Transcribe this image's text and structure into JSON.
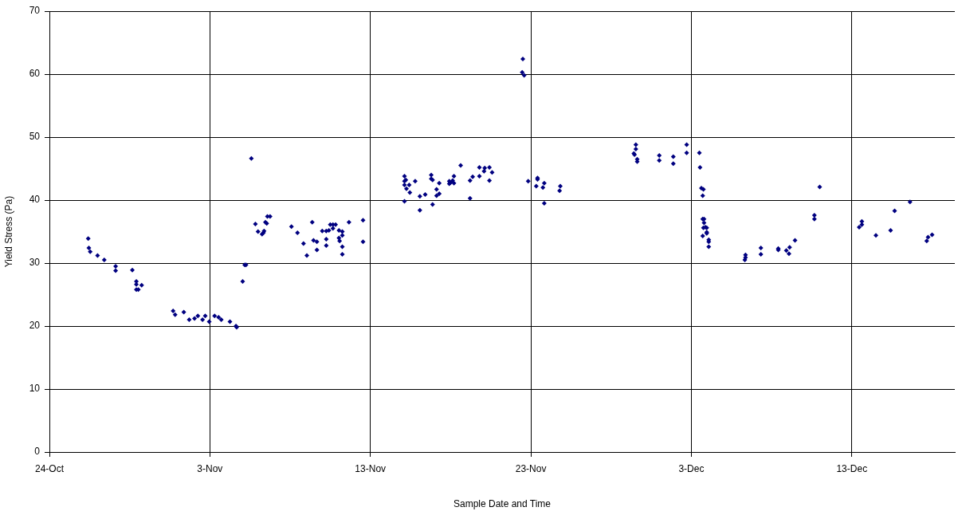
{
  "chart_data": {
    "type": "scatter",
    "xlabel": "Sample Date and Time",
    "ylabel": "Yield Stress (Pa)",
    "xlim": [
      "--10-24",
      "--12-19T10:00"
    ],
    "xticks": [
      {
        "value": "--10-24",
        "label": "24-Oct"
      },
      {
        "value": "--11-03",
        "label": "3-Nov"
      },
      {
        "value": "--11-13",
        "label": "13-Nov"
      },
      {
        "value": "--11-23",
        "label": "23-Nov"
      },
      {
        "value": "--12-03",
        "label": "3-Dec"
      },
      {
        "value": "--12-13",
        "label": "13-Dec"
      }
    ],
    "ylim": [
      0,
      70
    ],
    "yticks": [
      0,
      10,
      20,
      30,
      40,
      50,
      60,
      70
    ],
    "grid": true,
    "legend": false,
    "marker": "diamond",
    "series": [
      {
        "color": "#000080",
        "x": [
          "--10-26T10:00",
          "--10-26T11:00",
          "--10-26T13:00",
          "--10-27T00:00",
          "--10-27T10:00",
          "--10-28T03:00",
          "--10-28T03:00",
          "--10-29T04:00",
          "--10-29T10:00",
          "--10-29T10:00",
          "--10-29T18:00",
          "--10-29T10:00",
          "--10-29T13:00",
          "--10-31T17:00",
          "--10-31T20:00",
          "--11-01T09:00",
          "--11-01T17:00",
          "--11-02T01:00",
          "--11-02T06:00",
          "--11-02T13:00",
          "--11-02T17:00",
          "--11-02T23:00",
          "--11-03T07:00",
          "--11-03T13:00",
          "--11-03T17:00",
          "--11-04T06:00",
          "--11-04T15:00",
          "--11-04T16:00",
          "--11-05T14:00",
          "--11-05T01:00",
          "--11-05T04:00",
          "--11-05T06:00",
          "--11-05T20:00",
          "--11-06T00:00",
          "--11-06T06:00",
          "--11-06T08:00",
          "--11-06T09:00",
          "--11-06T11:00",
          "--11-06T13:00",
          "--11-06T14:00",
          "--11-06T18:00",
          "--11-08T02:00",
          "--11-08T11:00",
          "--11-08T20:00",
          "--11-09T01:00",
          "--11-09T09:00",
          "--11-09T11:00",
          "--11-09T16:00",
          "--11-09T16:00",
          "--11-10T00:00",
          "--11-10T06:00",
          "--11-10T06:00",
          "--11-10T06:00",
          "--11-10T10:00",
          "--11-10T12:00",
          "--11-10T16:00",
          "--11-10T16:00",
          "--11-10T20:00",
          "--11-11T01:00",
          "--11-11T01:00",
          "--11-11T02:00",
          "--11-11T06:00",
          "--11-11T06:00",
          "--11-11T06:00",
          "--11-11T06:00",
          "--11-11T16:00",
          "--11-12T13:00",
          "--11-12T13:00",
          "--11-15T03:00",
          "--11-15T05:00",
          "--11-15T03:00",
          "--11-15T03:00",
          "--11-15T06:00",
          "--11-15T10:00",
          "--11-15T11:00",
          "--11-15T03:00",
          "--11-15T19:00",
          "--11-16T02:00",
          "--11-16T02:00",
          "--11-16T10:00",
          "--11-16T19:00",
          "--11-16T19:00",
          "--11-16T21:00",
          "--11-16T21:00",
          "--11-17T03:00",
          "--11-17T03:00",
          "--11-17T07:00",
          "--11-17T07:00",
          "--11-17T22:00",
          "--11-17T22:00",
          "--11-18T00:00",
          "--11-18T03:00",
          "--11-18T05:00",
          "--11-18T05:00",
          "--11-18T15:00",
          "--11-19T05:00",
          "--11-19T05:00",
          "--11-19T09:00",
          "--11-19T19:00",
          "--11-19T19:00",
          "--11-20T03:00",
          "--11-20T02:00",
          "--11-20T10:00",
          "--11-20T10:00",
          "--11-20T14:00",
          "--11-22T20:00",
          "--11-23T10:00",
          "--11-23T10:00",
          "--11-23T08:00",
          "--11-23T18:00",
          "--11-23T20:00",
          "--11-23T20:00",
          "--11-24T20:00",
          "--11-24T19:00",
          "--11-22T12:00",
          "--11-22T11:00",
          "--11-22T14:00",
          "--11-29T13:00",
          "--11-29T13:00",
          "--11-29T10:00",
          "--11-29T11:00",
          "--11-29T15:00",
          "--11-29T15:00",
          "--12-01T00:00",
          "--12-01T00:00",
          "--12-01T21:00",
          "--12-01T21:00",
          "--12-02T17:00",
          "--12-02T17:00",
          "--12-03T12:00",
          "--12-03T13:00",
          "--12-03T15:00",
          "--12-03T18:00",
          "--12-03T17:00",
          "--12-03T17:00",
          "--12-03T19:00",
          "--12-03T19:00",
          "--12-03T18:00",
          "--12-03T21:00",
          "--12-03T23:00",
          "--12-03T23:00",
          "--12-03T23:00",
          "--12-03T17:00",
          "--12-04T02:00",
          "--12-04T02:00",
          "--12-04T02:00",
          "--12-06T09:00",
          "--12-06T09:00",
          "--12-06T08:00",
          "--12-07T08:00",
          "--12-07T08:00",
          "--12-08T10:00",
          "--12-08T10:00",
          "--12-08T22:00",
          "--12-09T02:00",
          "--12-09T03:00",
          "--12-09T11:00",
          "--12-10T16:00",
          "--12-10T16:00",
          "--12-11T00:00",
          "--12-13T11:00",
          "--12-13T15:00",
          "--12-13T15:00",
          "--12-14T12:00",
          "--12-15T10:00",
          "--12-15T16:00",
          "--12-16T15:00",
          "--12-17T16:00",
          "--12-17T18:00",
          "--12-18T00:00"
        ],
        "values": [
          33.9,
          32.4,
          31.8,
          31.2,
          30.5,
          29.5,
          28.8,
          28.9,
          27.1,
          26.6,
          26.5,
          25.8,
          25.8,
          22.4,
          21.8,
          22.2,
          21.0,
          21.2,
          21.6,
          21.0,
          21.6,
          20.7,
          21.6,
          21.4,
          21.0,
          20.7,
          20.0,
          19.8,
          46.6,
          27.1,
          29.7,
          29.7,
          36.2,
          35.0,
          34.6,
          34.8,
          35.1,
          36.5,
          36.3,
          37.4,
          37.4,
          35.8,
          34.8,
          33.1,
          31.2,
          36.5,
          33.6,
          33.4,
          32.1,
          35.1,
          35.1,
          33.8,
          32.8,
          35.2,
          36.1,
          35.5,
          36.1,
          36.1,
          35.2,
          34.0,
          33.5,
          35.0,
          34.4,
          32.6,
          31.4,
          36.5,
          36.8,
          33.4,
          43.8,
          43.2,
          43.0,
          42.4,
          41.8,
          42.4,
          41.2,
          39.8,
          43.0,
          40.6,
          38.4,
          40.9,
          44.0,
          43.4,
          43.2,
          39.3,
          41.7,
          40.7,
          42.7,
          41.0,
          43.0,
          42.6,
          42.8,
          43.1,
          42.7,
          43.8,
          45.5,
          43.1,
          40.3,
          43.7,
          43.8,
          45.2,
          45.1,
          44.6,
          45.2,
          43.1,
          44.4,
          43.0,
          43.5,
          43.3,
          42.2,
          42.0,
          42.7,
          39.5,
          42.2,
          41.5,
          62.4,
          60.3,
          59.8,
          48.8,
          48.1,
          47.4,
          47.2,
          46.5,
          46.1,
          47.1,
          46.3,
          46.9,
          45.8,
          48.8,
          47.5,
          47.5,
          45.2,
          41.9,
          41.7,
          40.7,
          37.0,
          37.0,
          36.4,
          35.6,
          35.7,
          35.6,
          34.9,
          34.7,
          34.3,
          33.7,
          33.4,
          32.6,
          31.3,
          30.9,
          30.5,
          32.4,
          31.4,
          32.3,
          32.1,
          32.0,
          31.5,
          32.5,
          33.6,
          37.6,
          37.0,
          42.1,
          35.7,
          36.6,
          36.1,
          34.4,
          35.2,
          38.3,
          39.7,
          33.5,
          34.1,
          34.5
        ]
      }
    ]
  }
}
